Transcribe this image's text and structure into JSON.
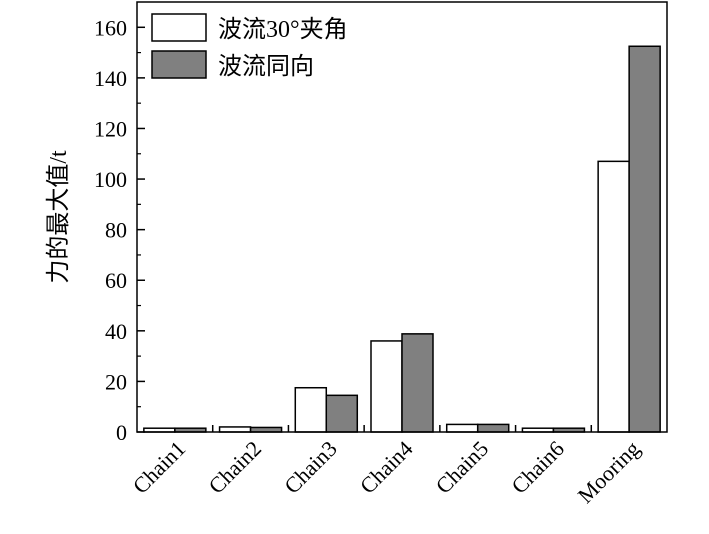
{
  "chart_data": {
    "type": "bar",
    "categories": [
      "Chain1",
      "Chain2",
      "Chain3",
      "Chain4",
      "Chain5",
      "Chain6",
      "Mooring"
    ],
    "series": [
      {
        "name": "波流30°夹角",
        "values": [
          1.5,
          2.0,
          17.5,
          36.0,
          3.0,
          1.5,
          107.0
        ],
        "color": "#ffffff"
      },
      {
        "name": "波流同向",
        "values": [
          1.5,
          1.8,
          14.5,
          38.8,
          3.0,
          1.5,
          152.5
        ],
        "color": "#808080"
      }
    ],
    "title": "",
    "xlabel": "",
    "ylabel": "力的最大值/t",
    "ylim": [
      0,
      170
    ],
    "yticks": [
      0,
      20,
      40,
      60,
      80,
      100,
      120,
      140,
      160
    ],
    "grid": false,
    "legend_position": "top-left"
  }
}
